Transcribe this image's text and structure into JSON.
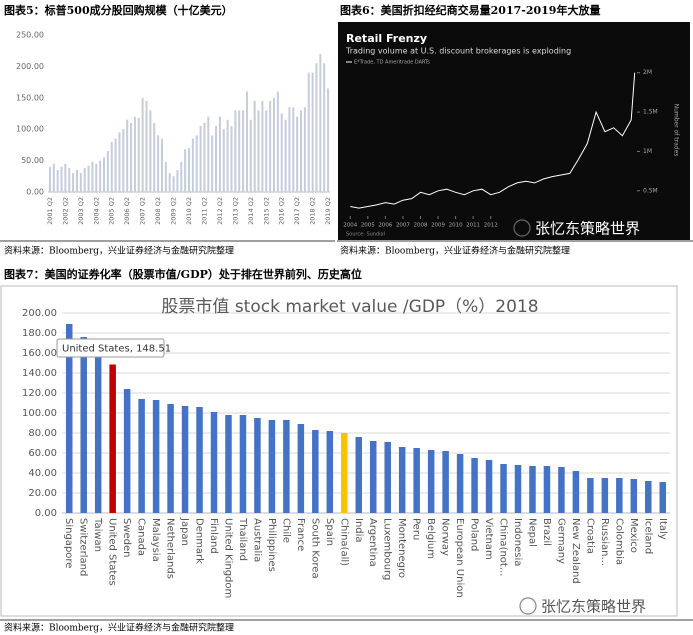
{
  "chart_data": [
    {
      "type": "bar",
      "caption": "图表5：标普500成分股回购规模（十亿美元）",
      "categories": [
        "2001 Q2",
        null,
        null,
        null,
        "2002 Q2",
        null,
        null,
        null,
        "2003 Q2",
        null,
        null,
        null,
        "2004 Q2",
        null,
        null,
        null,
        "2005 Q2",
        null,
        null,
        null,
        "2006 Q2",
        null,
        null,
        null,
        "2007 Q2",
        null,
        null,
        null,
        "2008 Q2",
        null,
        null,
        null,
        "2009 Q2",
        null,
        null,
        null,
        "2010 Q2",
        null,
        null,
        null,
        "2011 Q2",
        null,
        null,
        null,
        "2012 Q2",
        null,
        null,
        null,
        "2013 Q2",
        null,
        null,
        null,
        "2014 Q2",
        null,
        null,
        null,
        "2015 Q2",
        null,
        null,
        null,
        "2016 Q2",
        null,
        null,
        null,
        "2017 Q2",
        null,
        null,
        null,
        "2018 Q2",
        null,
        null,
        null,
        "2019 Q2"
      ],
      "values": [
        40,
        45,
        35,
        40,
        45,
        38,
        30,
        35,
        30,
        38,
        42,
        48,
        45,
        50,
        55,
        65,
        80,
        85,
        95,
        100,
        115,
        110,
        120,
        118,
        150,
        145,
        130,
        110,
        90,
        85,
        48,
        30,
        25,
        35,
        48,
        68,
        70,
        85,
        90,
        105,
        110,
        120,
        90,
        105,
        120,
        100,
        115,
        105,
        130,
        130,
        130,
        160,
        115,
        145,
        130,
        145,
        130,
        145,
        150,
        160,
        125,
        115,
        135,
        135,
        120,
        130,
        135,
        190,
        190,
        205,
        220,
        205,
        165
      ],
      "color": "#c5ccda",
      "ylim": [
        0,
        250
      ],
      "yticks": [
        {
          "value": 0,
          "label": "0.00"
        },
        {
          "value": 50,
          "label": "50.00"
        },
        {
          "value": 100,
          "label": "100.00"
        },
        {
          "value": 150,
          "label": "150.00"
        },
        {
          "value": 200,
          "label": "200.00"
        },
        {
          "value": 250,
          "label": "250.00"
        }
      ],
      "grid": false,
      "source": "资料来源：Bloomberg，兴业证券经济与金融研究院整理"
    },
    {
      "type": "line",
      "caption": "图表6：美国折扣经纪商交易量2017-2019年大放量",
      "title": "Retail Frenzy",
      "subtitle": "Trading volume at U.S. discount brokerages is exploding",
      "y_label": "Number of trades",
      "note": "Source: Sundial",
      "x": [
        2004,
        2004.5,
        2005,
        2005.5,
        2006,
        2006.5,
        2007,
        2007.5,
        2008,
        2008.5,
        2009,
        2009.5,
        2010,
        2010.5,
        2011,
        2011.5,
        2012,
        2012.5,
        2013,
        2013.5,
        2014,
        2014.5,
        2015,
        2015.5,
        2016,
        2016.5,
        2017,
        2017.5,
        2018,
        2018.5,
        2019,
        2019.5,
        2020,
        2020.2
      ],
      "series": [
        {
          "name": "E*Trade, TD Ameritrade DARTs",
          "color": "#ffffff",
          "values": [
            0.3,
            0.28,
            0.3,
            0.32,
            0.35,
            0.33,
            0.38,
            0.4,
            0.48,
            0.45,
            0.5,
            0.52,
            0.48,
            0.45,
            0.5,
            0.52,
            0.45,
            0.48,
            0.55,
            0.6,
            0.62,
            0.6,
            0.65,
            0.68,
            0.7,
            0.72,
            0.9,
            1.1,
            1.5,
            1.25,
            1.3,
            1.2,
            1.4,
            2.0
          ]
        }
      ],
      "xlim": [
        2003.7,
        2020.5
      ],
      "xticks": [
        2004,
        2005,
        2006,
        2007,
        2008,
        2009,
        2010,
        2011,
        2012
      ],
      "ylim": [
        0.23,
        2.2
      ],
      "yticks": [
        {
          "value": 0.5,
          "label": "0.5M"
        },
        {
          "value": 1,
          "label": "1M"
        },
        {
          "value": 1.5,
          "label": "1.5M"
        },
        {
          "value": 2,
          "label": "2M"
        }
      ],
      "background": "#0b0b0b",
      "source": "资料来源：Bloomberg，兴业证券经济与金融研究院整理"
    },
    {
      "type": "bar",
      "caption": "图表7：美国的证券化率（股票市值/GDP）处于排在世界前列、历史高位",
      "title": "股票市值 stock market value /GDP（%）2018",
      "annotation": "United States, 148.51",
      "categories": [
        "Singapore",
        "Switzerland",
        "Taiwan",
        "United States",
        "Sweden",
        "Canada",
        "Malaysia",
        "Netherlands",
        "Japan",
        "Denmark",
        "Finland",
        "United Kingdom",
        "Thailand",
        "Australia",
        "Philippines",
        "Chile",
        "France",
        "South Korea",
        "Spain",
        "China(all)",
        "India",
        "Argentina",
        "Luxembourg",
        "Montenegro",
        "Peru",
        "Belgium",
        "Norway",
        "European Union",
        "Poland",
        "Vietnam",
        "China(not...",
        "Indonesia",
        "Nepal",
        "Brazil",
        "Germany",
        "New Zealand",
        "Croatia",
        "Russian...",
        "Colombia",
        "Mexico",
        "Iceland",
        "Italy"
      ],
      "values": [
        189,
        176,
        160,
        148.51,
        124,
        114,
        113,
        109,
        107,
        106,
        101,
        98,
        98,
        95,
        93,
        93,
        89,
        83,
        82,
        80,
        76,
        72,
        71,
        66,
        65,
        63,
        62,
        59,
        55,
        53,
        49,
        48,
        47,
        47,
        46,
        42,
        35,
        35,
        35,
        34,
        32,
        31
      ],
      "colors": [
        "#4472c4",
        "#4472c4",
        "#4472c4",
        "#c00000",
        "#4472c4",
        "#4472c4",
        "#4472c4",
        "#4472c4",
        "#4472c4",
        "#4472c4",
        "#4472c4",
        "#4472c4",
        "#4472c4",
        "#4472c4",
        "#4472c4",
        "#4472c4",
        "#4472c4",
        "#4472c4",
        "#4472c4",
        "#ffc000",
        "#4472c4",
        "#4472c4",
        "#4472c4",
        "#4472c4",
        "#4472c4",
        "#4472c4",
        "#4472c4",
        "#4472c4",
        "#4472c4",
        "#4472c4",
        "#4472c4",
        "#4472c4",
        "#4472c4",
        "#4472c4",
        "#4472c4",
        "#4472c4",
        "#4472c4",
        "#4472c4",
        "#4472c4",
        "#4472c4",
        "#4472c4",
        "#4472c4"
      ],
      "ylim": [
        0,
        200
      ],
      "yticks": [
        {
          "value": 0,
          "label": "0.00"
        },
        {
          "value": 20,
          "label": "20.00"
        },
        {
          "value": 40,
          "label": "40.00"
        },
        {
          "value": 60,
          "label": "60.00"
        },
        {
          "value": 80,
          "label": "80.00"
        },
        {
          "value": 100,
          "label": "100.00"
        },
        {
          "value": 120,
          "label": "120.00"
        },
        {
          "value": 140,
          "label": "140.00"
        },
        {
          "value": 160,
          "label": "160.00"
        },
        {
          "value": 180,
          "label": "180.00"
        },
        {
          "value": 200,
          "label": "200.00"
        }
      ],
      "grid": true,
      "source": "资料来源：Bloomberg，兴业证券经济与金融研究院整理"
    }
  ],
  "watermarks": [
    "张忆东策略世界",
    "张忆东策略世界"
  ]
}
